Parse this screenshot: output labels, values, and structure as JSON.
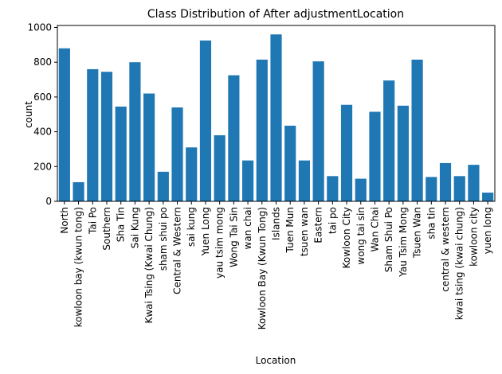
{
  "chart_data": {
    "type": "bar",
    "title": "Class Distribution of After adjustmentLocation",
    "xlabel": "Location",
    "ylabel": "count",
    "ylim": [
      0,
      1000
    ],
    "yticks": [
      0,
      200,
      400,
      600,
      800,
      1000
    ],
    "grid": false,
    "bar_color": "#1f77b4",
    "categories": [
      "North",
      "kowloon bay (kwun tong)",
      "Tai Po",
      "Southern",
      "Sha Tin",
      "Sai Kung",
      "Kwai Tsing (Kwai Chung)",
      "sham shui po",
      "Central & Western",
      "sai kung",
      "Yuen Long",
      "yau tsim mong",
      "Wong Tai Sin",
      "wan chai",
      "Kowloon Bay (Kwun Tong)",
      "Islands",
      "Tuen Mun",
      "tsuen wan",
      "Eastern",
      "tai po",
      "Kowloon City",
      "wong tai sin",
      "Wan Chai",
      "Sham Shui Po",
      "Yau Tsim Mong",
      "Tsuen Wan",
      "sha tin",
      "central & western",
      "kwai tsing (kwai chung)",
      "kowloon city",
      "yuen long"
    ],
    "values": [
      880,
      110,
      760,
      745,
      545,
      800,
      620,
      170,
      540,
      310,
      925,
      380,
      725,
      235,
      815,
      960,
      435,
      235,
      805,
      145,
      555,
      130,
      515,
      695,
      550,
      815,
      140,
      220,
      145,
      210,
      50
    ]
  }
}
